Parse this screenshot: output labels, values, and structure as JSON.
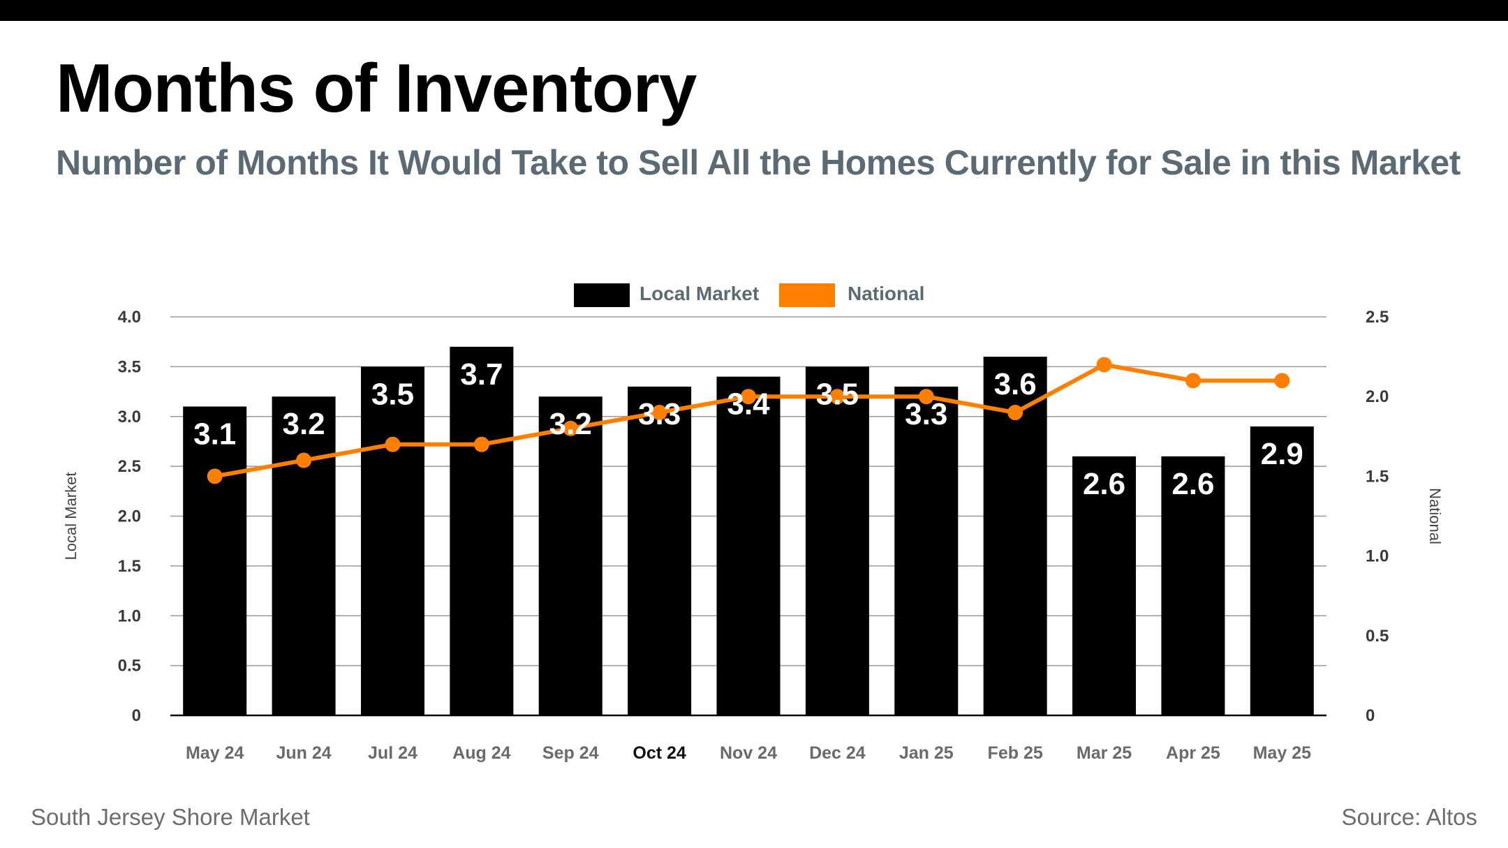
{
  "header": {
    "title": "Months of Inventory",
    "subtitle": "Number of Months It Would Take to Sell All the Homes Currently for Sale in this Market"
  },
  "footer": {
    "left": "South Jersey Shore Market",
    "right": "Source: Altos"
  },
  "colors": {
    "local": "#000000",
    "national": "#ff8000",
    "grid": "#9a9a9a",
    "label": "#ffffff"
  },
  "chart_data": {
    "type": "bar",
    "categories": [
      "May 24",
      "Jun 24",
      "Jul 24",
      "Aug 24",
      "Sep 24",
      "Oct 24",
      "Nov 24",
      "Dec 24",
      "Jan 25",
      "Feb 25",
      "Mar 25",
      "Apr 25",
      "May 25"
    ],
    "highlighted_category": "Oct 24",
    "series": [
      {
        "name": "Local Market",
        "type": "bar",
        "axis": "left",
        "values": [
          3.1,
          3.2,
          3.5,
          3.7,
          3.2,
          3.3,
          3.4,
          3.5,
          3.3,
          3.6,
          2.6,
          2.6,
          2.9
        ],
        "labels": [
          "3.1",
          "3.2",
          "3.5",
          "3.7",
          "3.2",
          "3.3",
          "3.4",
          "3.5",
          "3.3",
          "3.6",
          "2.6",
          "2.6",
          "2.9"
        ]
      },
      {
        "name": "National",
        "type": "line",
        "axis": "right",
        "values": [
          1.5,
          1.6,
          1.7,
          1.7,
          1.8,
          1.9,
          2.0,
          2.0,
          2.0,
          1.9,
          2.2,
          2.1,
          2.1
        ]
      }
    ],
    "left_axis": {
      "title": "Local Market",
      "range": [
        0,
        4.0
      ],
      "ticks": [
        "0",
        "0.5",
        "1.0",
        "1.5",
        "2.0",
        "2.5",
        "3.0",
        "3.5",
        "4.0"
      ],
      "tick_values": [
        0,
        0.5,
        1.0,
        1.5,
        2.0,
        2.5,
        3.0,
        3.5,
        4.0
      ]
    },
    "right_axis": {
      "title": "National",
      "range": [
        0,
        2.5
      ],
      "ticks": [
        "0",
        "0.5",
        "1.0",
        "1.5",
        "2.0",
        "2.5"
      ],
      "tick_values": [
        0,
        0.5,
        1.0,
        1.5,
        2.0,
        2.5
      ]
    },
    "legend": {
      "position": "top-center",
      "items": [
        "Local Market",
        "National"
      ]
    },
    "grid": true
  }
}
